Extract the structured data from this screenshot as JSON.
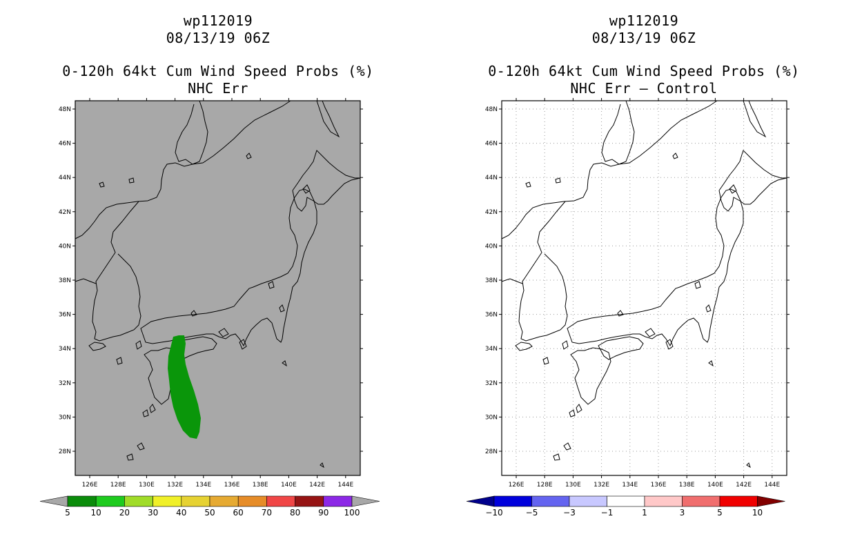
{
  "panels": [
    {
      "storm_id": "wp112019",
      "datetime": "08/13/19 06Z",
      "product": "0-120h 64kt Cum Wind Speed Probs (%)",
      "subtitle": "NHC Err",
      "background": "#a8a8a8",
      "colorbar": {
        "labels": [
          "5",
          "10",
          "20",
          "30",
          "40",
          "50",
          "60",
          "70",
          "80",
          "90",
          "100"
        ],
        "colors": [
          "#0a8c0a",
          "#1ecb1e",
          "#a0dc28",
          "#f0f028",
          "#e6d232",
          "#e6aa32",
          "#e68c28",
          "#f04646",
          "#961414",
          "#8c28e6"
        ],
        "end_color": "#a8a8a8"
      }
    },
    {
      "storm_id": "wp112019",
      "datetime": "08/13/19 06Z",
      "product": "0-120h 64kt Cum Wind Speed Probs (%)",
      "subtitle": "NHC Err – Control",
      "background": "#ffffff",
      "colorbar": {
        "labels": [
          "−10",
          "−5",
          "−3",
          "−1",
          "1",
          "3",
          "5",
          "10"
        ],
        "colors": [
          "#0000dc",
          "#6464f0",
          "#c8c8ff",
          "#ffffff",
          "#ffc8c8",
          "#f06e6e",
          "#f00000"
        ],
        "low_end_color": "#00008c",
        "high_end_color": "#820000"
      }
    }
  ],
  "lat_labels": [
    "48N",
    "46N",
    "44N",
    "42N",
    "40N",
    "38N",
    "36N",
    "34N",
    "32N",
    "30N",
    "28N"
  ],
  "lon_labels": [
    "126E",
    "128E",
    "130E",
    "132E",
    "134E",
    "136E",
    "138E",
    "140E",
    "142E",
    "144E"
  ],
  "prob_region_color": "#0a960a"
}
